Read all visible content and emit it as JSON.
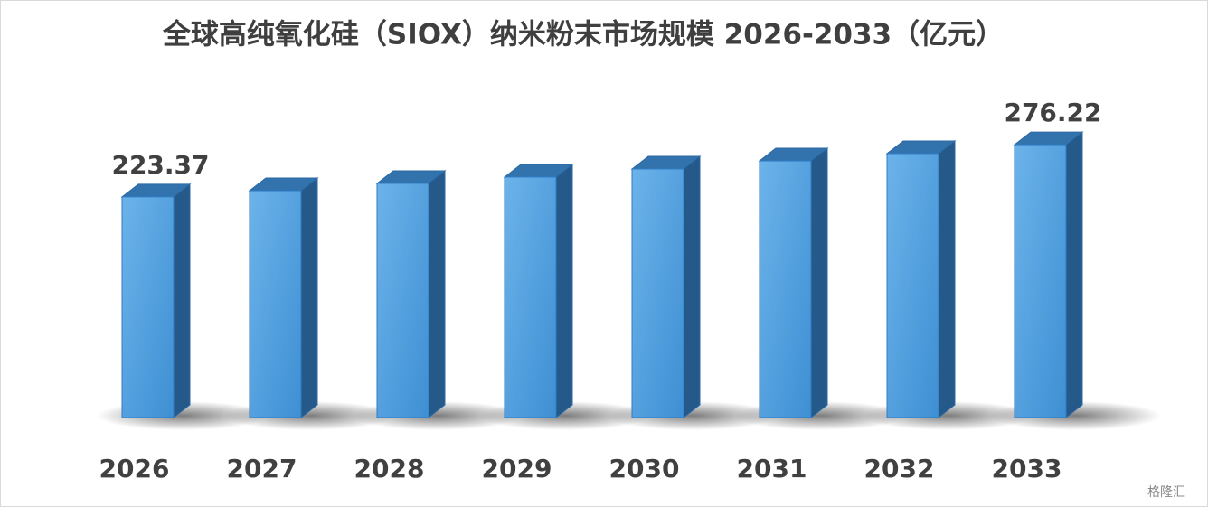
{
  "chart_data": {
    "type": "bar3d",
    "title": "全球高纯氧化硅（SIOX）纳米粉末市场规模 2026-2033（亿元）",
    "categories": [
      "2026",
      "2027",
      "2028",
      "2029",
      "2030",
      "2031",
      "2032",
      "2033"
    ],
    "values": [
      223.37,
      229.6,
      237.0,
      243.4,
      251.6,
      259.8,
      267.2,
      276.22
    ],
    "value_labels": [
      "223.37",
      null,
      null,
      null,
      null,
      null,
      null,
      "276.22"
    ],
    "color": "#5ba7e3",
    "watermark": "格隆汇"
  }
}
